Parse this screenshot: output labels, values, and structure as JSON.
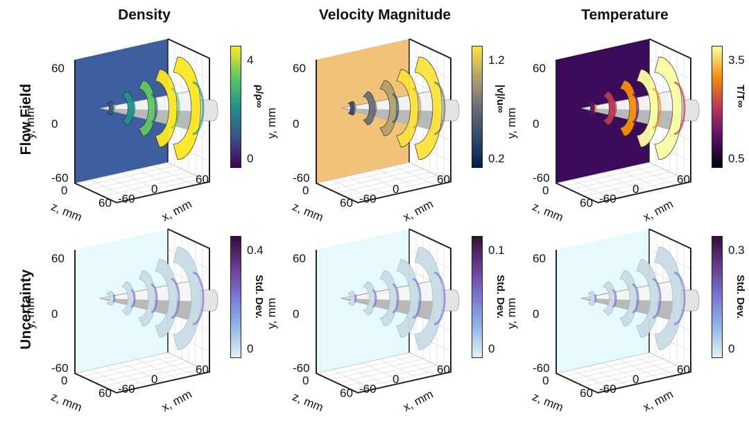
{
  "columns": [
    {
      "title": "Density"
    },
    {
      "title": "Velocity Magnitude"
    },
    {
      "title": "Temperature"
    }
  ],
  "rows": [
    {
      "label": "Flow Field"
    },
    {
      "label": "Uncertainty"
    }
  ],
  "axes": {
    "y_label": "y, mm",
    "x_label": "x, mm",
    "z_label": "z, mm",
    "y_ticks": [
      "60",
      "0",
      "-60"
    ],
    "x_ticks": [
      "-60",
      "0",
      "60"
    ],
    "z_ticks": [
      "0",
      "60"
    ]
  },
  "panels": {
    "flow": [
      {
        "colorbar_title": "ρ/ρ∞",
        "cb_top": "4",
        "cb_bottom": "0",
        "colormap": "viridis",
        "background": "#3d5fa0"
      },
      {
        "colorbar_title": "|v|/u∞",
        "cb_top": "1.2",
        "cb_bottom": "0.2",
        "colormap": "cividis",
        "background": "#f0c27a"
      },
      {
        "colorbar_title": "T/T∞",
        "cb_top": "3.5",
        "cb_bottom": "0.5",
        "colormap": "inferno",
        "background": "#3b0b5a"
      }
    ],
    "unc": [
      {
        "colorbar_title": "Std. Dev.",
        "cb_top": "0.4",
        "cb_bottom": "0",
        "colormap": "dense",
        "background": "#e6fafd"
      },
      {
        "colorbar_title": "Std. Dev.",
        "cb_top": "0.1",
        "cb_bottom": "0",
        "colormap": "dense",
        "background": "#e6fafd"
      },
      {
        "colorbar_title": "Std. Dev.",
        "cb_top": "0.3",
        "cb_bottom": "0",
        "colormap": "dense",
        "background": "#e6fafd"
      }
    ]
  },
  "colors": {
    "viridis": [
      "#fde725",
      "#5ec962",
      "#21918c",
      "#3b528b",
      "#440154"
    ],
    "cividis": [
      "#fde33b",
      "#b3a36a",
      "#6b6e7a",
      "#2f4a6e",
      "#00204d"
    ],
    "inferno": [
      "#fcffa4",
      "#f98e09",
      "#bc3754",
      "#57106e",
      "#000004"
    ],
    "dense": [
      "#360c3a",
      "#6a3b8e",
      "#7a78d6",
      "#8fb9e6",
      "#e6f1f1"
    ]
  }
}
